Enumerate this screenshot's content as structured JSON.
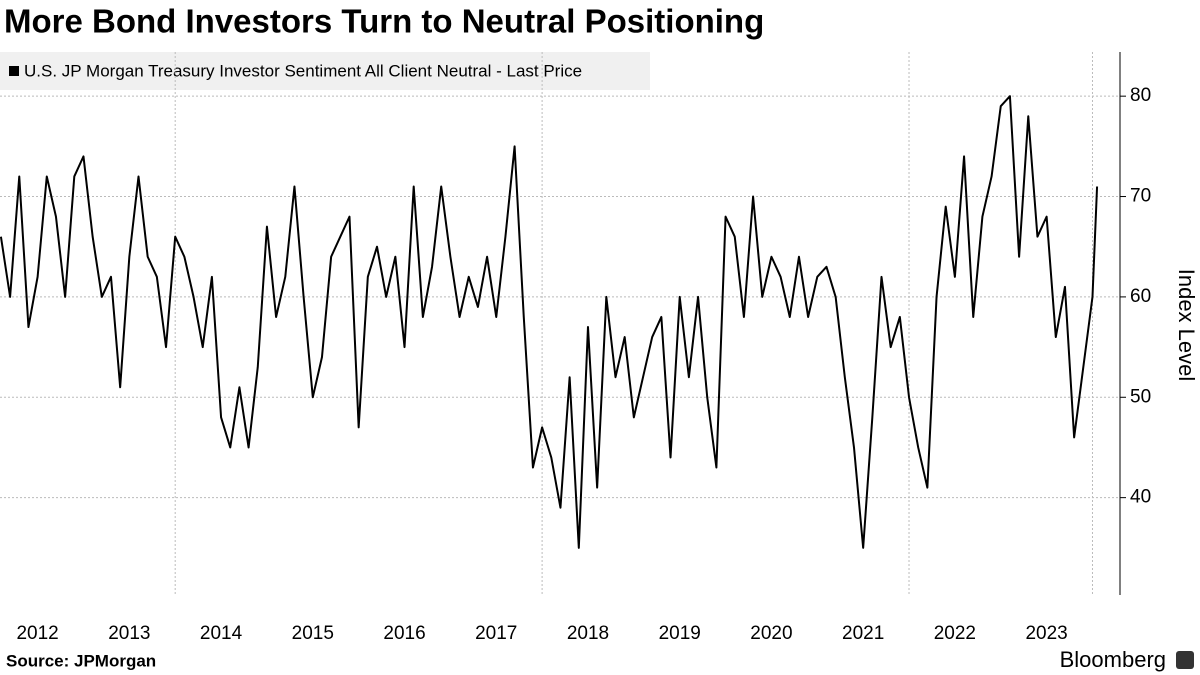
{
  "chart_data": {
    "type": "line",
    "title": "More Bond Investors Turn to Neutral Positioning",
    "y_label": "Index Level",
    "source": "Source: JPMorgan",
    "brand": "Bloomberg",
    "x": [
      2012.1,
      2012.2,
      2012.3,
      2012.4,
      2012.5,
      2012.6,
      2012.7,
      2012.8,
      2012.9,
      2013.0,
      2013.1,
      2013.2,
      2013.3,
      2013.4,
      2013.5,
      2013.6,
      2013.7,
      2013.8,
      2013.9,
      2014.0,
      2014.1,
      2014.2,
      2014.3,
      2014.4,
      2014.5,
      2014.6,
      2014.7,
      2014.8,
      2014.9,
      2015.0,
      2015.1,
      2015.2,
      2015.3,
      2015.4,
      2015.5,
      2015.6,
      2015.7,
      2015.8,
      2015.9,
      2016.0,
      2016.1,
      2016.2,
      2016.3,
      2016.4,
      2016.5,
      2016.6,
      2016.7,
      2016.8,
      2016.9,
      2017.0,
      2017.1,
      2017.2,
      2017.3,
      2017.4,
      2017.5,
      2017.6,
      2017.7,
      2017.8,
      2017.9,
      2018.0,
      2018.1,
      2018.2,
      2018.3,
      2018.4,
      2018.5,
      2018.6,
      2018.7,
      2018.8,
      2018.9,
      2019.0,
      2019.1,
      2019.2,
      2019.3,
      2019.4,
      2019.5,
      2019.6,
      2019.7,
      2019.8,
      2019.9,
      2020.0,
      2020.1,
      2020.2,
      2020.3,
      2020.4,
      2020.5,
      2020.6,
      2020.7,
      2020.8,
      2020.9,
      2021.0,
      2021.1,
      2021.2,
      2021.3,
      2021.4,
      2021.5,
      2021.6,
      2021.7,
      2021.8,
      2021.9,
      2022.0,
      2022.1,
      2022.2,
      2022.3,
      2022.4,
      2022.5,
      2022.6,
      2022.7,
      2022.8,
      2022.9,
      2023.0,
      2023.1,
      2023.2,
      2023.3,
      2023.4,
      2023.5,
      2023.6,
      2023.7,
      2023.8,
      2023.9,
      2024.0,
      2024.05
    ],
    "series": [
      {
        "name": "U.S. JP Morgan Treasury Investor Sentiment All Client Neutral - Last Price",
        "color": "#000000",
        "values": [
          66,
          60,
          72,
          57,
          62,
          72,
          68,
          60,
          72,
          74,
          66,
          60,
          62,
          51,
          64,
          72,
          64,
          62,
          55,
          66,
          64,
          60,
          55,
          62,
          48,
          45,
          51,
          45,
          53,
          67,
          58,
          62,
          71,
          60,
          50,
          54,
          64,
          66,
          68,
          47,
          62,
          65,
          60,
          64,
          55,
          71,
          58,
          63,
          71,
          64,
          58,
          62,
          59,
          64,
          58,
          66,
          75,
          58,
          43,
          47,
          44,
          39,
          52,
          35,
          57,
          41,
          60,
          52,
          56,
          48,
          52,
          56,
          58,
          44,
          60,
          52,
          60,
          50,
          43,
          68,
          66,
          58,
          70,
          60,
          64,
          62,
          58,
          64,
          58,
          62,
          63,
          60,
          52,
          45,
          35,
          48,
          62,
          55,
          58,
          50,
          45,
          41,
          60,
          69,
          62,
          74,
          58,
          68,
          72,
          79,
          80,
          64,
          78,
          66,
          68,
          56,
          61,
          46,
          53,
          60,
          71
        ]
      }
    ],
    "xlim": [
      2012.09,
      2024.3
    ],
    "xticks": [
      {
        "value": 2012.5,
        "label": "2012"
      },
      {
        "value": 2013.5,
        "label": "2013"
      },
      {
        "value": 2014.5,
        "label": "2014"
      },
      {
        "value": 2015.5,
        "label": "2015"
      },
      {
        "value": 2016.5,
        "label": "2016"
      },
      {
        "value": 2017.5,
        "label": "2017"
      },
      {
        "value": 2018.5,
        "label": "2018"
      },
      {
        "value": 2019.5,
        "label": "2019"
      },
      {
        "value": 2020.5,
        "label": "2020"
      },
      {
        "value": 2021.5,
        "label": "2021"
      },
      {
        "value": 2022.5,
        "label": "2022"
      },
      {
        "value": 2023.5,
        "label": "2023"
      }
    ],
    "xgrid": [
      2014,
      2018,
      2022,
      2024
    ],
    "ylim": [
      30.3,
      84.4
    ],
    "yticks": [
      40,
      50,
      60,
      70,
      80
    ],
    "grid": true
  }
}
